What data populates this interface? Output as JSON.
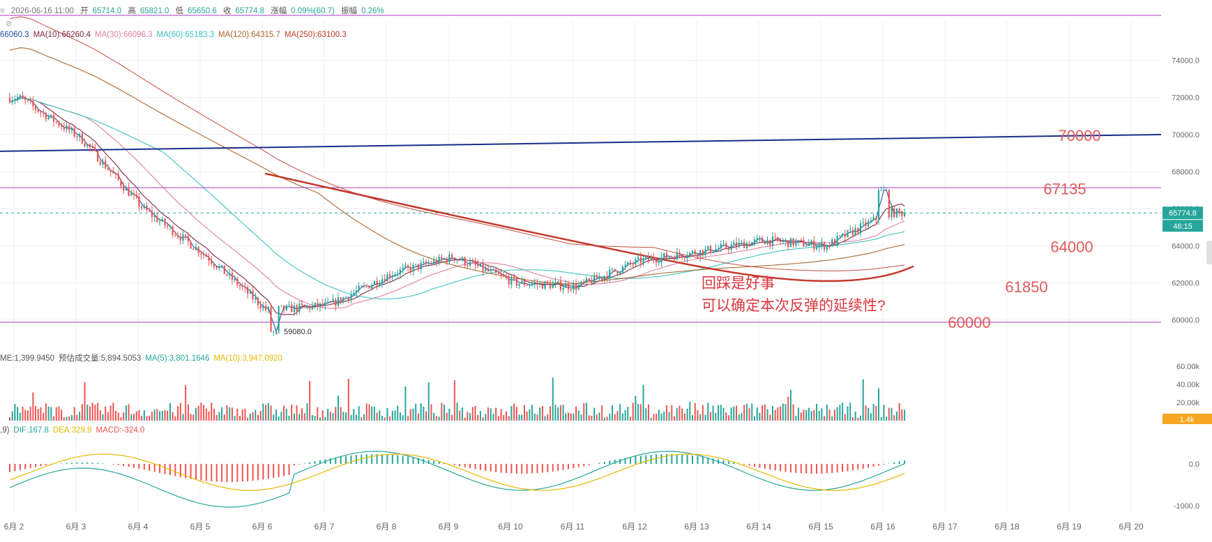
{
  "header": {
    "date_prefix": "≡",
    "datetime": "2026-06-16 11:00",
    "open_label": "开",
    "open": "65714.0",
    "high_label": "高",
    "high": "65821.0",
    "low_label": "低",
    "low": "65650.6",
    "close_label": "收",
    "close": "65774.8",
    "change_label": "涨幅",
    "change": "0.09%(60.7)",
    "amp_label": "振幅",
    "amp": "0.26%"
  },
  "ma_legend": [
    {
      "text": "66060.3",
      "color": "#1e4fa3"
    },
    {
      "text": "MA(10):66260.4",
      "color": "#7b1f3a"
    },
    {
      "text": "MA(30):66096.3",
      "color": "#e07ba0"
    },
    {
      "text": "MA(60):65183.3",
      "color": "#3cc0c0"
    },
    {
      "text": "MA(120):64315.7",
      "color": "#a8642a"
    },
    {
      "text": "MA(250):63100.3",
      "color": "#c0392b"
    }
  ],
  "volume_legend": [
    {
      "text": "ME:1,399.9450",
      "color": "#555555"
    },
    {
      "text": "预估成交量:5,894.5053",
      "color": "#555555"
    },
    {
      "text": "MA(5):3,801.1646",
      "color": "#26a69a"
    },
    {
      "text": "MA(10):3,947.0920",
      "color": "#e6b800"
    }
  ],
  "macd_legend": [
    {
      "text": ",9)",
      "color": "#555555"
    },
    {
      "text": "DIF:167.8",
      "color": "#26a69a"
    },
    {
      "text": "DEA:329.9",
      "color": "#e6b800"
    },
    {
      "text": "MACD:-324.0",
      "color": "#ef5350"
    }
  ],
  "annotations": {
    "line1": "回踩是好事",
    "line2": "可以确定本次反弹的延续性?",
    "low_marker": "← 59080.0"
  },
  "price_tags": {
    "current": "65774.8",
    "countdown": "46:15",
    "volume_tag": "1.4k"
  },
  "level_labels": [
    "70000",
    "67135",
    "64000",
    "61850",
    "60000"
  ],
  "colors": {
    "up": "#26a69a",
    "down": "#ef5350",
    "grid": "#f0f0f0",
    "purple_line": "#a23dbd",
    "navy_trend": "#1a2c8a",
    "red_trend": "#c0392b",
    "level_text": "#e05a5a",
    "annotation_text": "#d9363e",
    "current_tag": "#26a69a",
    "vol_tag": "#f5a623"
  },
  "chart_data": {
    "type": "candlestick",
    "x_tick_labels": [
      "6月 2",
      "6月 3",
      "6月 4",
      "6月 5",
      "6月 6",
      "6月 7",
      "6月 8",
      "6月 9",
      "6月 10",
      "6月 11",
      "6月 12",
      "6月 13",
      "6月 14",
      "6月 15",
      "6月 16",
      "6月 17",
      "6月 18",
      "6月 19",
      "6月 20"
    ],
    "price_axis": {
      "ticks": [
        "60000.0",
        "62000.0",
        "64000.0",
        "66000.0",
        "68000.0",
        "70000.0",
        "72000.0",
        "74000.0"
      ],
      "ylim": [
        59500,
        75000
      ]
    },
    "volume_axis": {
      "ticks": [
        "20.00k",
        "40.00k",
        "60.00k"
      ]
    },
    "macd_axis": {
      "ticks": [
        "0.0",
        "-1000.0"
      ]
    },
    "close_path": [
      {
        "day": "6月 2",
        "close": 72000
      },
      {
        "day": "6月 3",
        "close": 69800
      },
      {
        "day": "6月 4",
        "close": 66000
      },
      {
        "day": "6月 5",
        "close": 63500
      },
      {
        "day": "6月 6",
        "close": 60500
      },
      {
        "day": "6月 7",
        "close": 60800
      },
      {
        "day": "6月 8",
        "close": 62500
      },
      {
        "day": "6月 9",
        "close": 63400
      },
      {
        "day": "6月 10",
        "close": 62000
      },
      {
        "day": "6月 11",
        "close": 61800
      },
      {
        "day": "6月 12",
        "close": 63200
      },
      {
        "day": "6月 13",
        "close": 63700
      },
      {
        "day": "6月 14",
        "close": 64300
      },
      {
        "day": "6月 15",
        "close": 64000
      },
      {
        "day": "6月 16",
        "close": 65774.8
      }
    ],
    "overall_low": 59080.0,
    "current_price": 65774.8
  }
}
